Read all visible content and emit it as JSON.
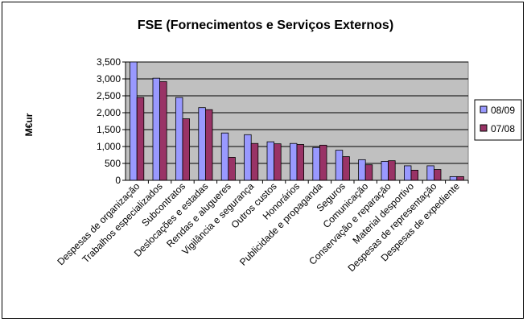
{
  "chart_data": {
    "type": "bar",
    "title": "FSE (Fornecimentos e Serviços Externos)",
    "xlabel": "",
    "ylabel": "M€ur",
    "ylim": [
      0,
      3500
    ],
    "yticks": [
      "0",
      "500",
      "1,000",
      "1,500",
      "2,000",
      "2,500",
      "3,000",
      "3,500"
    ],
    "grid": true,
    "legend_position": "right",
    "categories": [
      "Despesas de organização",
      "Trabalhos especializados",
      "Subcontratos",
      "Deslocações e estadas",
      "Rendas e alugueres",
      "Vigilância e segurança",
      "Outros custos",
      "Honorários",
      "Publicidade e propaganda",
      "Seguros",
      "Comunicação",
      "Conservação e reparação",
      "Material desportivo",
      "Despesas de representação",
      "Despesas de expediente"
    ],
    "series": [
      {
        "name": "08/09",
        "color": "#9999FF",
        "values": [
          3500,
          3020,
          2450,
          2150,
          1400,
          1350,
          1140,
          1090,
          970,
          890,
          610,
          560,
          430,
          430,
          110
        ]
      },
      {
        "name": "07/08",
        "color": "#993366",
        "values": [
          2450,
          2920,
          1820,
          2090,
          680,
          1090,
          1080,
          1060,
          1040,
          700,
          460,
          580,
          300,
          320,
          110
        ]
      }
    ],
    "colors": {
      "plot_background": "#C0C0C0",
      "gridline": "#000000",
      "bar_outline": "#000000"
    }
  }
}
